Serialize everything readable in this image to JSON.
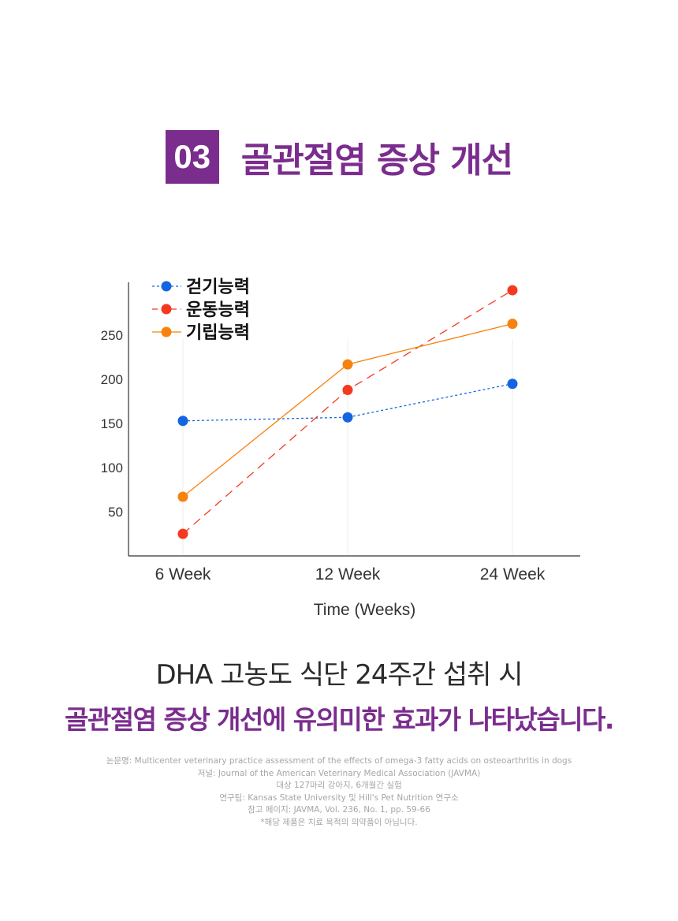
{
  "header": {
    "badge": "03",
    "title": "골관절염 증상 개선"
  },
  "chart_data": {
    "type": "line",
    "categories": [
      "6 Week",
      "12 Week",
      "24 Week"
    ],
    "xlabel": "Time (Weeks)",
    "ylabel": "",
    "yticks": [
      50,
      100,
      150,
      200,
      250
    ],
    "ylim": [
      0,
      310
    ],
    "grid": "vertical",
    "legend_position": "top-left",
    "series": [
      {
        "name": "걷기능력",
        "values": [
          153,
          157,
          195
        ],
        "color": "#1565e0",
        "dash": "dotted"
      },
      {
        "name": "운동능력",
        "values": [
          25,
          188,
          301
        ],
        "color": "#f4391f",
        "dash": "dashed"
      },
      {
        "name": "기립능력",
        "values": [
          67,
          217,
          263
        ],
        "color": "#f7820e",
        "dash": "solid"
      }
    ]
  },
  "summary": {
    "line1": "DHA 고농도 식단 24주간 섭취 시",
    "line2": "골관절염 증상 개선에 유의미한 효과가 나타났습니다."
  },
  "references": [
    "논문명: Multicenter veterinary practice assessment of the effects of omega-3 fatty acids on osteoarthritis in dogs",
    "저널: Journal of the American Veterinary Medical Association (JAVMA)",
    "대상 127마리 강아지, 6개월간 실험",
    "연구팀: Kansas State University 및 Hill's Pet Nutrition 연구소",
    "참고 페이지: JAVMA, Vol. 236, No. 1, pp. 59-66",
    "*해당 제품은 치료 목적의 의약품이 아닙니다."
  ]
}
